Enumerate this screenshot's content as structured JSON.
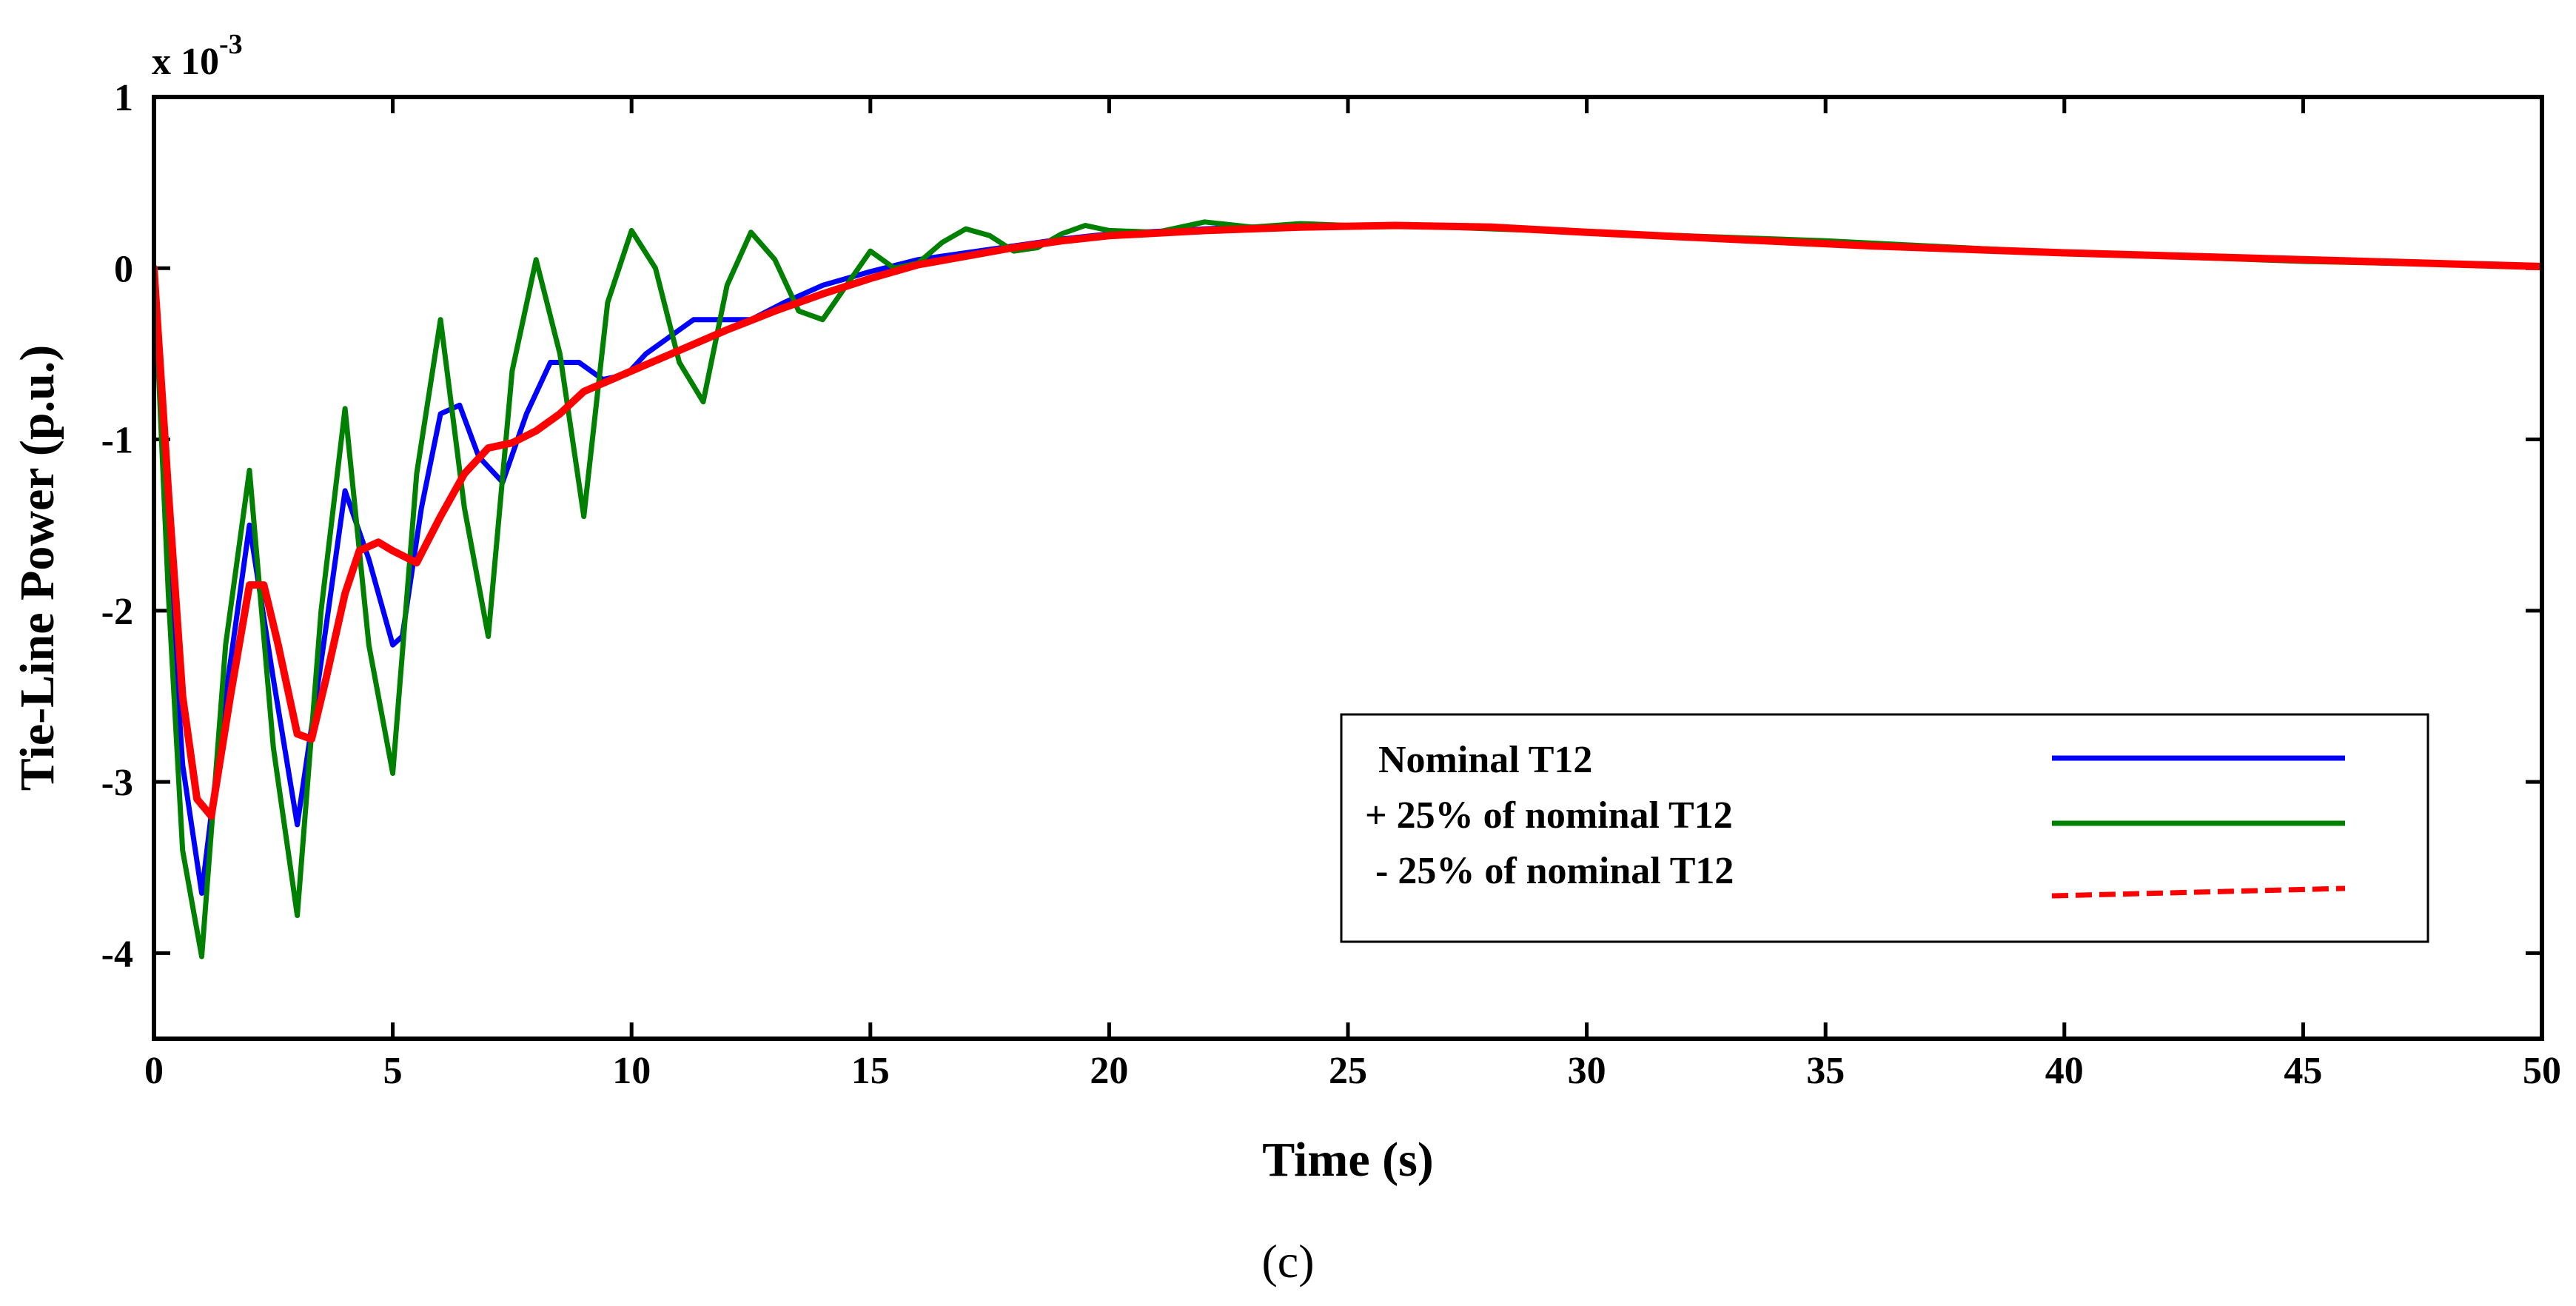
{
  "chart_data": {
    "type": "line",
    "title": "",
    "xlabel": "Time (s)",
    "ylabel": "Tie-Line Power (p.u.)",
    "y_multiplier_label": "x 10",
    "y_multiplier_exponent": "-3",
    "xlim": [
      0,
      50
    ],
    "ylim": [
      -4.5,
      1
    ],
    "xticks": [
      0,
      5,
      10,
      15,
      20,
      25,
      30,
      35,
      40,
      45,
      50
    ],
    "yticks": [
      -4,
      -3,
      -2,
      -1,
      0,
      1
    ],
    "grid": false,
    "legend_position": "lower-right",
    "caption": "(c)",
    "series": [
      {
        "name": "Nominal T12",
        "legend_label": "Nominal T12",
        "color": "#0000ff",
        "style": "solid",
        "x": [
          0,
          0.3,
          0.6,
          1.0,
          1.5,
          2.0,
          2.5,
          3.0,
          3.5,
          4.0,
          4.5,
          5.0,
          5.2,
          5.6,
          6.0,
          6.4,
          6.8,
          7.3,
          7.8,
          8.3,
          8.9,
          9.4,
          9.9,
          10.3,
          10.8,
          11.3,
          11.8,
          12.5,
          13.2,
          14.0,
          15.0,
          16.0,
          17.0,
          18.0,
          19.0,
          20.0,
          22.0,
          24.0,
          26.0,
          28.0,
          30.0,
          33.0,
          36.0,
          40.0,
          45.0,
          50.0
        ],
        "values": [
          0,
          -1.6,
          -2.9,
          -3.65,
          -2.5,
          -1.5,
          -2.4,
          -3.25,
          -2.3,
          -1.3,
          -1.7,
          -2.2,
          -2.15,
          -1.4,
          -0.85,
          -0.8,
          -1.1,
          -1.25,
          -0.85,
          -0.55,
          -0.55,
          -0.65,
          -0.62,
          -0.5,
          -0.4,
          -0.3,
          -0.3,
          -0.3,
          -0.2,
          -0.1,
          -0.02,
          0.05,
          0.09,
          0.13,
          0.17,
          0.2,
          0.23,
          0.25,
          0.25,
          0.24,
          0.21,
          0.17,
          0.13,
          0.09,
          0.05,
          0.01
        ]
      },
      {
        "name": "+ 25% of nominal T12",
        "legend_label": "+ 25% of nominal T12",
        "color": "#008000",
        "style": "solid",
        "x": [
          0,
          0.3,
          0.6,
          1.0,
          1.5,
          2.0,
          2.5,
          3.0,
          3.5,
          4.0,
          4.5,
          5.0,
          5.5,
          6.0,
          6.5,
          7.0,
          7.5,
          8.0,
          8.5,
          9.0,
          9.5,
          10.0,
          10.5,
          11.0,
          11.5,
          12.0,
          12.5,
          13.0,
          13.5,
          14.0,
          14.5,
          15.0,
          15.5,
          16.0,
          16.5,
          17.0,
          17.5,
          18.0,
          18.5,
          19.0,
          19.5,
          20.0,
          21.0,
          22.0,
          23.0,
          24.0,
          25.0,
          27.0,
          30.0,
          35.0,
          40.0,
          45.0,
          50.0
        ],
        "values": [
          0,
          -1.9,
          -3.4,
          -4.02,
          -2.2,
          -1.18,
          -2.8,
          -3.78,
          -2.0,
          -0.82,
          -2.2,
          -2.95,
          -1.2,
          -0.3,
          -1.4,
          -2.15,
          -0.6,
          0.05,
          -0.5,
          -1.45,
          -0.2,
          0.22,
          0.0,
          -0.55,
          -0.78,
          -0.1,
          0.21,
          0.05,
          -0.25,
          -0.3,
          -0.1,
          0.1,
          -0.0,
          0.03,
          0.15,
          0.23,
          0.19,
          0.1,
          0.12,
          0.2,
          0.25,
          0.22,
          0.21,
          0.27,
          0.24,
          0.26,
          0.25,
          0.24,
          0.21,
          0.16,
          0.09,
          0.04,
          0.01
        ]
      },
      {
        "name": "- 25% of nominal T12",
        "legend_label": "- 25% of nominal T12",
        "color": "#ff0000",
        "style": "dashed",
        "x": [
          0,
          0.3,
          0.6,
          0.9,
          1.2,
          1.6,
          2.0,
          2.3,
          2.6,
          3.0,
          3.3,
          3.6,
          4.0,
          4.3,
          4.7,
          5.0,
          5.5,
          6.0,
          6.5,
          7.0,
          7.5,
          8.0,
          8.5,
          9.0,
          10.0,
          11.0,
          12.0,
          13.0,
          14.0,
          15.0,
          16.0,
          17.0,
          18.0,
          19.0,
          20.0,
          22.0,
          24.0,
          26.0,
          28.0,
          30.0,
          33.0,
          36.0,
          40.0,
          45.0,
          50.0
        ],
        "values": [
          0,
          -1.3,
          -2.5,
          -3.1,
          -3.2,
          -2.5,
          -1.85,
          -1.85,
          -2.2,
          -2.72,
          -2.75,
          -2.4,
          -1.9,
          -1.65,
          -1.6,
          -1.65,
          -1.72,
          -1.45,
          -1.2,
          -1.05,
          -1.02,
          -0.95,
          -0.85,
          -0.72,
          -0.6,
          -0.48,
          -0.36,
          -0.25,
          -0.15,
          -0.06,
          0.02,
          0.07,
          0.12,
          0.16,
          0.19,
          0.22,
          0.24,
          0.25,
          0.24,
          0.21,
          0.17,
          0.13,
          0.09,
          0.05,
          0.01
        ]
      }
    ]
  }
}
